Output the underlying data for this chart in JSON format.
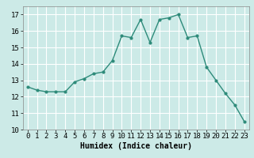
{
  "x": [
    0,
    1,
    2,
    3,
    4,
    5,
    6,
    7,
    8,
    9,
    10,
    11,
    12,
    13,
    14,
    15,
    16,
    17,
    18,
    19,
    20,
    21,
    22,
    23
  ],
  "y": [
    12.6,
    12.4,
    12.3,
    12.3,
    12.3,
    12.9,
    13.1,
    13.4,
    13.5,
    14.2,
    15.7,
    15.6,
    16.7,
    15.3,
    16.7,
    16.8,
    17.0,
    15.6,
    15.7,
    13.8,
    13.0,
    12.2,
    11.5,
    10.5
  ],
  "line_color": "#2e8b7a",
  "bg_color": "#cceae7",
  "grid_color": "#ffffff",
  "xlabel": "Humidex (Indice chaleur)",
  "xlim": [
    -0.5,
    23.5
  ],
  "ylim": [
    10,
    17.5
  ],
  "yticks": [
    10,
    11,
    12,
    13,
    14,
    15,
    16,
    17
  ],
  "xtick_labels": [
    "0",
    "1",
    "2",
    "3",
    "4",
    "5",
    "6",
    "7",
    "8",
    "9",
    "10",
    "11",
    "12",
    "13",
    "14",
    "15",
    "16",
    "17",
    "18",
    "19",
    "20",
    "21",
    "22",
    "23"
  ],
  "label_fontsize": 7,
  "tick_fontsize": 6.5
}
